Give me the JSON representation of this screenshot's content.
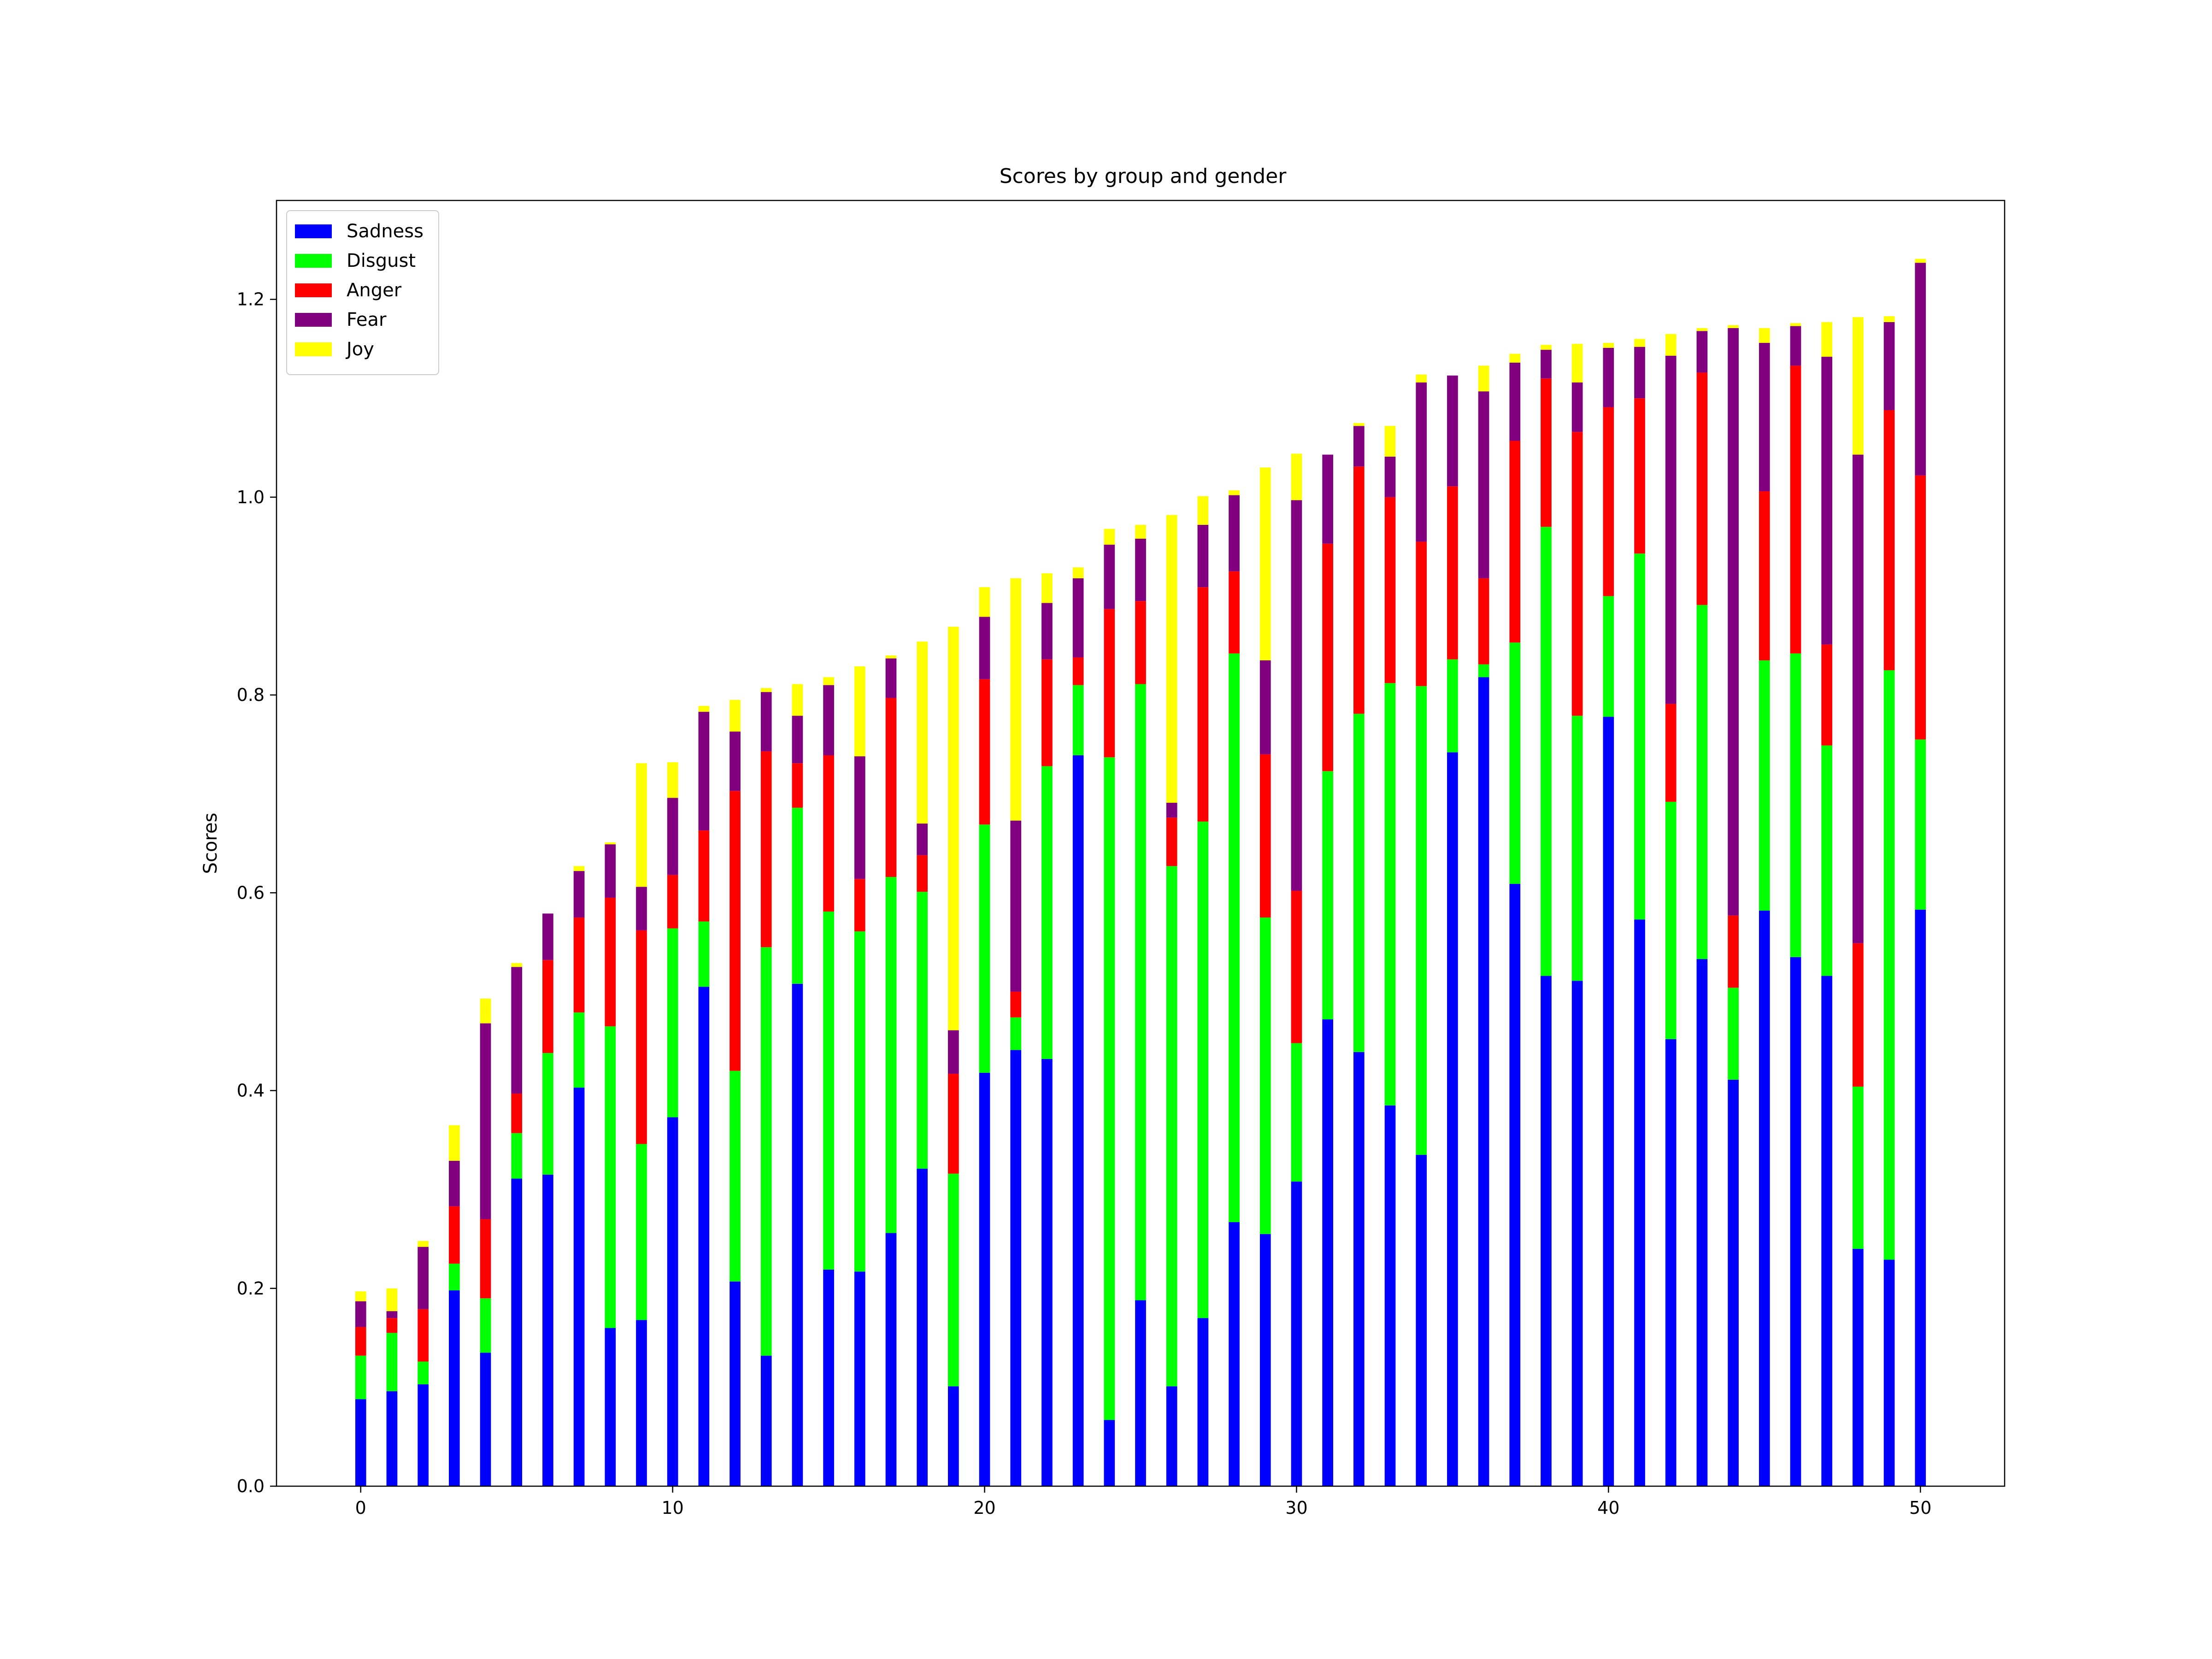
{
  "chart_data": {
    "type": "bar",
    "stacked": true,
    "title": "Scores by group and gender",
    "xlabel": "",
    "ylabel": "Scores",
    "xlim": [
      -2.7,
      52.7
    ],
    "ylim": [
      0.0,
      1.3
    ],
    "xticks": [
      0,
      10,
      20,
      30,
      40,
      50
    ],
    "yticks": [
      0.0,
      0.2,
      0.4,
      0.6,
      0.8,
      1.0,
      1.2
    ],
    "ytick_labels": [
      "0.0",
      "0.2",
      "0.4",
      "0.6",
      "0.8",
      "1.0",
      "1.2"
    ],
    "grid": false,
    "legend_position": "top-left",
    "x": [
      0,
      1,
      2,
      3,
      4,
      5,
      6,
      7,
      8,
      9,
      10,
      11,
      12,
      13,
      14,
      15,
      16,
      17,
      18,
      19,
      20,
      21,
      22,
      23,
      24,
      25,
      26,
      27,
      28,
      29,
      30,
      31,
      32,
      33,
      34,
      35,
      36,
      37,
      38,
      39,
      40,
      41,
      42,
      43,
      44,
      45,
      46,
      47,
      48,
      49,
      50
    ],
    "series": [
      {
        "name": "Sadness",
        "color": "#0000ff",
        "values": [
          0.088,
          0.096,
          0.103,
          0.198,
          0.135,
          0.311,
          0.315,
          0.403,
          0.16,
          0.168,
          0.373,
          0.505,
          0.207,
          0.132,
          0.508,
          0.219,
          0.217,
          0.256,
          0.321,
          0.101,
          0.418,
          0.441,
          0.432,
          0.739,
          0.067,
          0.188,
          0.101,
          0.17,
          0.267,
          0.255,
          0.308,
          0.472,
          0.439,
          0.385,
          0.335,
          0.742,
          0.818,
          0.609,
          0.516,
          0.511,
          0.778,
          0.573,
          0.452,
          0.533,
          0.411,
          0.582,
          0.535,
          0.516,
          0.24,
          0.229,
          0.583
        ]
      },
      {
        "name": "Disgust",
        "color": "#00ff00",
        "values": [
          0.044,
          0.059,
          0.023,
          0.027,
          0.055,
          0.046,
          0.123,
          0.076,
          0.305,
          0.178,
          0.191,
          0.066,
          0.213,
          0.413,
          0.178,
          0.362,
          0.344,
          0.36,
          0.28,
          0.215,
          0.251,
          0.033,
          0.296,
          0.071,
          0.67,
          0.623,
          0.526,
          0.502,
          0.575,
          0.32,
          0.14,
          0.251,
          0.342,
          0.427,
          0.474,
          0.094,
          0.013,
          0.244,
          0.454,
          0.268,
          0.122,
          0.37,
          0.24,
          0.358,
          0.093,
          0.253,
          0.307,
          0.233,
          0.164,
          0.596,
          0.172
        ]
      },
      {
        "name": "Anger",
        "color": "#ff0000",
        "values": [
          0.029,
          0.015,
          0.053,
          0.058,
          0.08,
          0.04,
          0.094,
          0.096,
          0.13,
          0.216,
          0.054,
          0.092,
          0.283,
          0.198,
          0.045,
          0.158,
          0.053,
          0.181,
          0.037,
          0.101,
          0.147,
          0.026,
          0.108,
          0.028,
          0.15,
          0.084,
          0.049,
          0.237,
          0.083,
          0.165,
          0.154,
          0.23,
          0.25,
          0.188,
          0.146,
          0.175,
          0.087,
          0.204,
          0.15,
          0.287,
          0.191,
          0.157,
          0.099,
          0.235,
          0.073,
          0.171,
          0.291,
          0.102,
          0.145,
          0.263,
          0.267
        ]
      },
      {
        "name": "Fear",
        "color": "#800080",
        "values": [
          0.026,
          0.007,
          0.063,
          0.046,
          0.198,
          0.128,
          0.047,
          0.047,
          0.054,
          0.044,
          0.078,
          0.12,
          0.06,
          0.06,
          0.048,
          0.071,
          0.124,
          0.04,
          0.032,
          0.044,
          0.063,
          0.173,
          0.057,
          0.08,
          0.065,
          0.063,
          0.015,
          0.063,
          0.077,
          0.095,
          0.395,
          0.09,
          0.041,
          0.041,
          0.161,
          0.112,
          0.189,
          0.079,
          0.029,
          0.05,
          0.06,
          0.052,
          0.352,
          0.042,
          0.594,
          0.15,
          0.04,
          0.291,
          0.494,
          0.089,
          0.215
        ]
      },
      {
        "name": "Joy",
        "color": "#ffff00",
        "values": [
          0.01,
          0.023,
          0.006,
          0.036,
          0.025,
          0.004,
          0.0,
          0.005,
          0.002,
          0.125,
          0.036,
          0.006,
          0.032,
          0.004,
          0.032,
          0.008,
          0.091,
          0.003,
          0.184,
          0.408,
          0.03,
          0.245,
          0.03,
          0.011,
          0.016,
          0.014,
          0.291,
          0.029,
          0.005,
          0.195,
          0.047,
          0.0,
          0.003,
          0.031,
          0.008,
          0.0,
          0.026,
          0.009,
          0.005,
          0.039,
          0.005,
          0.008,
          0.022,
          0.003,
          0.003,
          0.015,
          0.003,
          0.035,
          0.139,
          0.006,
          0.004
        ]
      }
    ]
  }
}
